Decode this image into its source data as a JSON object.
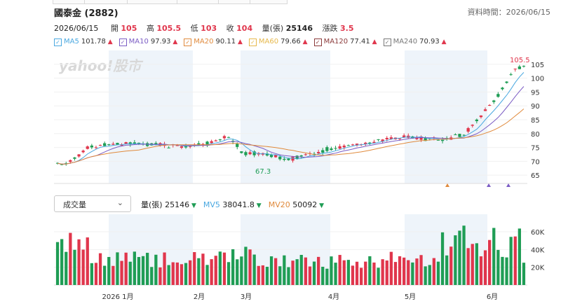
{
  "header": {
    "title": "國泰金 (2882)",
    "data_time_label": "資料時間：2026/06/15"
  },
  "quote": {
    "date": "2026/06/15",
    "open_label": "開",
    "open": "105",
    "high_label": "高",
    "high": "105.5",
    "low_label": "低",
    "low": "103",
    "close_label": "收",
    "close": "104",
    "volume_label": "量(張)",
    "volume": "25146",
    "change_label": "漲跌",
    "change": "3.5"
  },
  "ma_legend": [
    {
      "label": "MA5",
      "value": "101.78",
      "color": "#4aa8e0"
    },
    {
      "label": "MA10",
      "value": "97.93",
      "color": "#7b5cc4"
    },
    {
      "label": "MA20",
      "value": "90.11",
      "color": "#e08a3c"
    },
    {
      "label": "MA60",
      "value": "79.66",
      "color": "#e6b84a"
    },
    {
      "label": "MA120",
      "value": "77.41",
      "color": "#8b3a3a"
    },
    {
      "label": "MA240",
      "value": "70.93",
      "color": "#777777"
    }
  ],
  "volume_panel": {
    "indicator_select": "成交量",
    "items": [
      {
        "label": "量(張)",
        "value": "25146",
        "color": "#222222"
      },
      {
        "label": "MV5",
        "value": "38041.8",
        "color": "#4aa8e0"
      },
      {
        "label": "MV20",
        "value": "50092",
        "color": "#e08a3c"
      }
    ]
  },
  "chart_data": {
    "type": "candlestick",
    "watermark": "yahoo!股市",
    "price_axis_ticks": [
      65,
      70,
      75,
      80,
      85,
      90,
      95,
      100,
      105
    ],
    "price_ylim": [
      62,
      108
    ],
    "volume_axis_ticks": [
      "20K",
      "40K",
      "60K"
    ],
    "volume_tick_values": [
      20000,
      40000,
      60000
    ],
    "volume_ylim": [
      0,
      75000
    ],
    "x_tick_labels": [
      "2026 1月",
      "2月",
      "3月",
      "4月",
      "5月",
      "6月"
    ],
    "max_annotation": "105.5",
    "min_annotation": "67.3",
    "colors": {
      "up": "#e0364c",
      "down": "#1f9d55",
      "shade": "#eef4fa"
    }
  }
}
